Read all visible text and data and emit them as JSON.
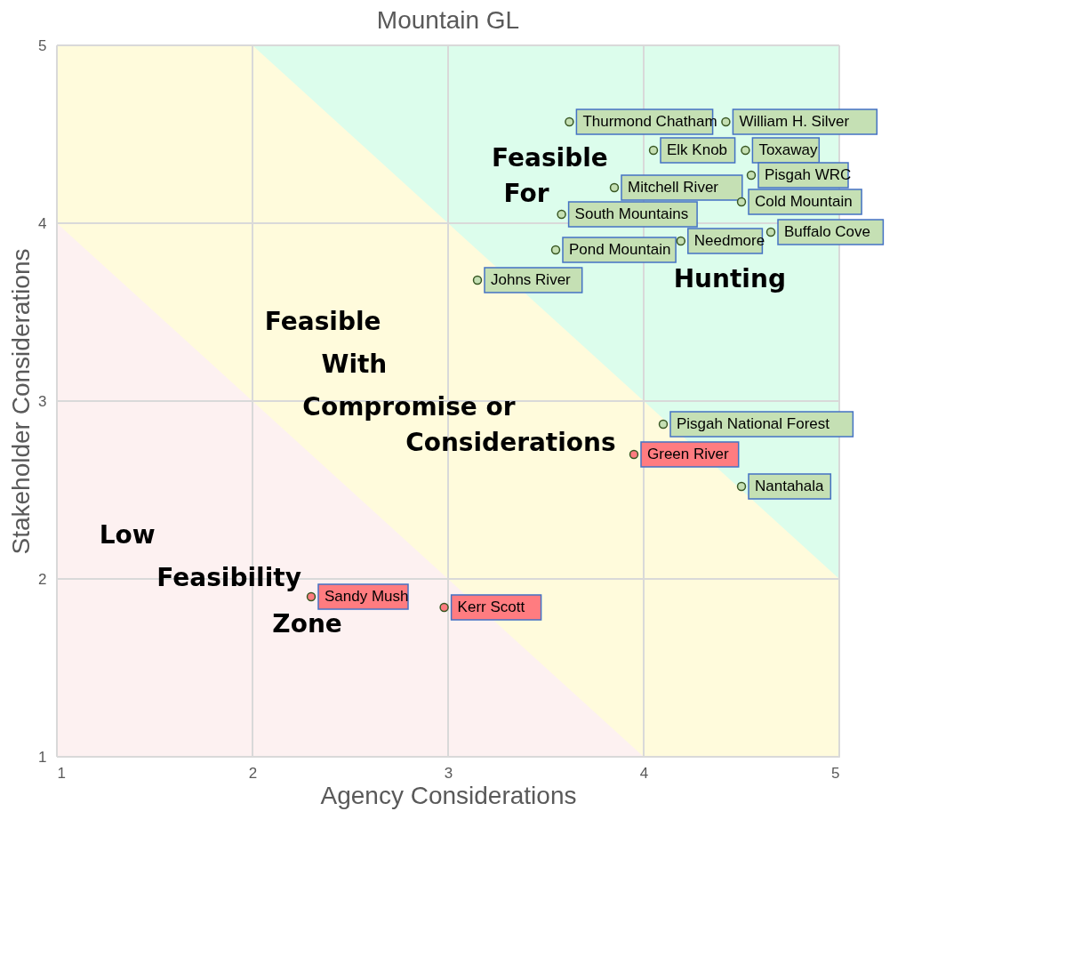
{
  "chart_data": {
    "type": "scatter",
    "title": "Mountain GL",
    "xlabel": "Agency Considerations",
    "ylabel": "Stakeholder Considerations",
    "xlim": [
      1,
      5
    ],
    "ylim": [
      1,
      5
    ],
    "xticks": [
      1,
      2,
      3,
      4,
      5
    ],
    "yticks": [
      1,
      2,
      3,
      4,
      5
    ],
    "grid": true,
    "series": [
      {
        "type": "area",
        "color": "#dcfdec",
        "x": [
          2,
          5
        ],
        "values": [
          5,
          5
        ]
      },
      {
        "type": "area",
        "color": "#fffbdc",
        "x": [
          1,
          2,
          5
        ],
        "values": [
          5,
          5,
          2
        ]
      },
      {
        "type": "area",
        "color": "#fdf1f1",
        "x": [
          1,
          4
        ],
        "values": [
          4,
          1
        ]
      },
      {
        "color": "#c5e0b4",
        "marker": "circle",
        "x": [
          3.62,
          4.42,
          4.05,
          4.52,
          3.85,
          4.55,
          4.5,
          3.58,
          4.19,
          4.65,
          3.55,
          3.15,
          4.1,
          4.5
        ],
        "values": [
          4.57,
          4.57,
          4.41,
          4.41,
          4.2,
          4.27,
          4.12,
          4.05,
          3.9,
          3.95,
          3.85,
          3.68,
          2.87,
          2.52
        ],
        "value_labels": [
          "Thurmond Chatham",
          "William H. Silver",
          "Elk Knob",
          "Toxaway",
          "Mitchell River",
          "Pisgah WRC",
          "Cold Mountain",
          "South Mountains",
          "Needmore",
          "Buffalo Cove",
          "Pond Mountain",
          "Johns River",
          "Pisgah National Forest",
          "Nantahala"
        ]
      },
      {
        "color": "#ff7c80",
        "marker": "circle",
        "x": [
          3.95,
          2.3,
          2.98
        ],
        "values": [
          2.7,
          1.9,
          1.84
        ],
        "value_labels": [
          "Green River",
          "Sandy Mush",
          "Kerr Scott"
        ]
      }
    ],
    "annotations": [
      "Feasible",
      "For",
      "Hunting",
      "Feasible",
      "With",
      "Compromise or",
      "Considerations",
      "Low",
      "Feasibility",
      "Zone"
    ]
  }
}
